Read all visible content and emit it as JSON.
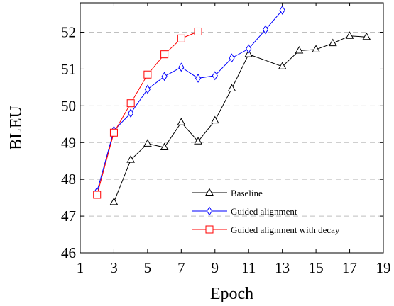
{
  "chart_data": {
    "type": "line",
    "title": "",
    "xlabel": "Epoch",
    "ylabel": "BLEU",
    "xlim": [
      1,
      19
    ],
    "ylim": [
      46,
      52.8
    ],
    "xticks": [
      1,
      3,
      5,
      7,
      9,
      11,
      13,
      15,
      17,
      19
    ],
    "yticks": [
      46,
      47,
      48,
      49,
      50,
      51,
      52
    ],
    "ygrid": true,
    "legend_position": "bottom-right",
    "series": [
      {
        "name": "Baseline",
        "color": "#000000",
        "marker": "triangle",
        "x": [
          3,
          4,
          5,
          6,
          7,
          8,
          9,
          10,
          11,
          13,
          14,
          15,
          16,
          17,
          18
        ],
        "y": [
          47.38,
          48.53,
          48.97,
          48.87,
          49.55,
          49.03,
          49.6,
          50.47,
          51.4,
          51.07,
          51.5,
          51.53,
          51.7,
          51.9,
          51.87
        ]
      },
      {
        "name": "Guided alignment",
        "color": "#0000ff",
        "marker": "diamond",
        "x": [
          2,
          3,
          4,
          5,
          6,
          7,
          8,
          9,
          10,
          11,
          12,
          13
        ],
        "y": [
          47.67,
          49.33,
          49.8,
          50.45,
          50.8,
          51.05,
          50.75,
          50.82,
          51.3,
          51.55,
          52.07,
          52.6
        ]
      },
      {
        "name": "Guided alignment with decay",
        "color": "#ff0000",
        "marker": "square",
        "x": [
          2,
          3,
          4,
          5,
          6,
          7,
          8
        ],
        "y": [
          47.58,
          49.27,
          50.07,
          50.85,
          51.4,
          51.83,
          52.02
        ]
      }
    ]
  }
}
